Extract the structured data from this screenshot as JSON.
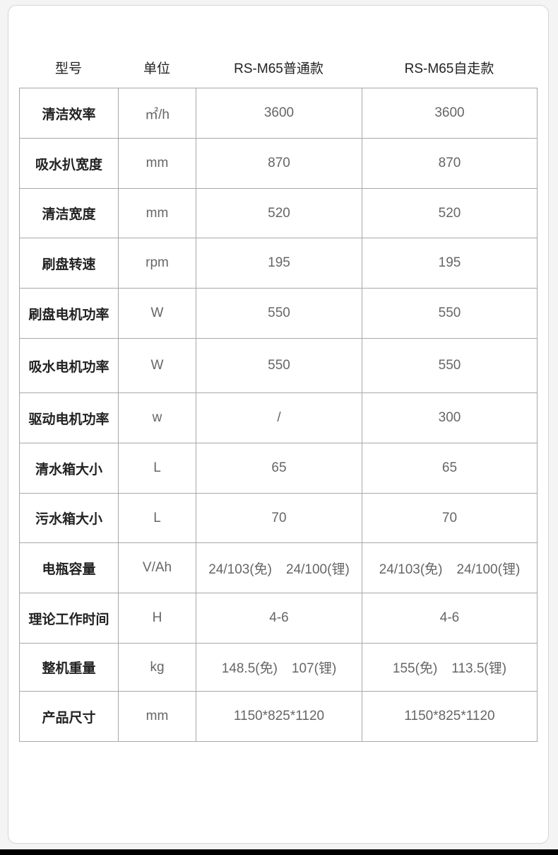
{
  "header": {
    "model": "型号",
    "unit": "单位",
    "col_a": "RS-M65普通款",
    "col_b": "RS-M65自走款"
  },
  "rows": [
    {
      "name": "清洁效率",
      "unit": "㎡/h",
      "a": [
        "3600"
      ],
      "b": [
        "3600"
      ]
    },
    {
      "name": "吸水扒宽度",
      "unit": "mm",
      "a": [
        "870"
      ],
      "b": [
        "870"
      ]
    },
    {
      "name": "清洁宽度",
      "unit": "mm",
      "a": [
        "520"
      ],
      "b": [
        "520"
      ]
    },
    {
      "name": "刷盘转速",
      "unit": "rpm",
      "a": [
        "195"
      ],
      "b": [
        "195"
      ]
    },
    {
      "name": "刷盘电机功率",
      "unit": "W",
      "a": [
        "550"
      ],
      "b": [
        "550"
      ]
    },
    {
      "name": "吸水电机功率",
      "unit": "W",
      "a": [
        "550"
      ],
      "b": [
        "550"
      ]
    },
    {
      "name": "驱动电机功率",
      "unit": "w",
      "a": [
        "/"
      ],
      "b": [
        "300"
      ]
    },
    {
      "name": "清水箱大小",
      "unit": "L",
      "a": [
        "65"
      ],
      "b": [
        "65"
      ]
    },
    {
      "name": "污水箱大小",
      "unit": "L",
      "a": [
        "70"
      ],
      "b": [
        "70"
      ]
    },
    {
      "name": "电瓶容量",
      "unit": "V/Ah",
      "a": [
        "24/103(免)",
        "24/100(锂)"
      ],
      "b": [
        "24/103(免)",
        "24/100(锂)"
      ]
    },
    {
      "name": "理论工作时间",
      "unit": "H",
      "a": [
        "4-6"
      ],
      "b": [
        "4-6"
      ]
    },
    {
      "name": "整机重量",
      "unit": "kg",
      "a": [
        "148.5(免)",
        "107(锂)"
      ],
      "b": [
        "155(免)",
        "113.5(锂)"
      ]
    },
    {
      "name": "产品尺寸",
      "unit": "mm",
      "a": [
        "1150*825*1120"
      ],
      "b": [
        "1150*825*1120"
      ]
    }
  ]
}
